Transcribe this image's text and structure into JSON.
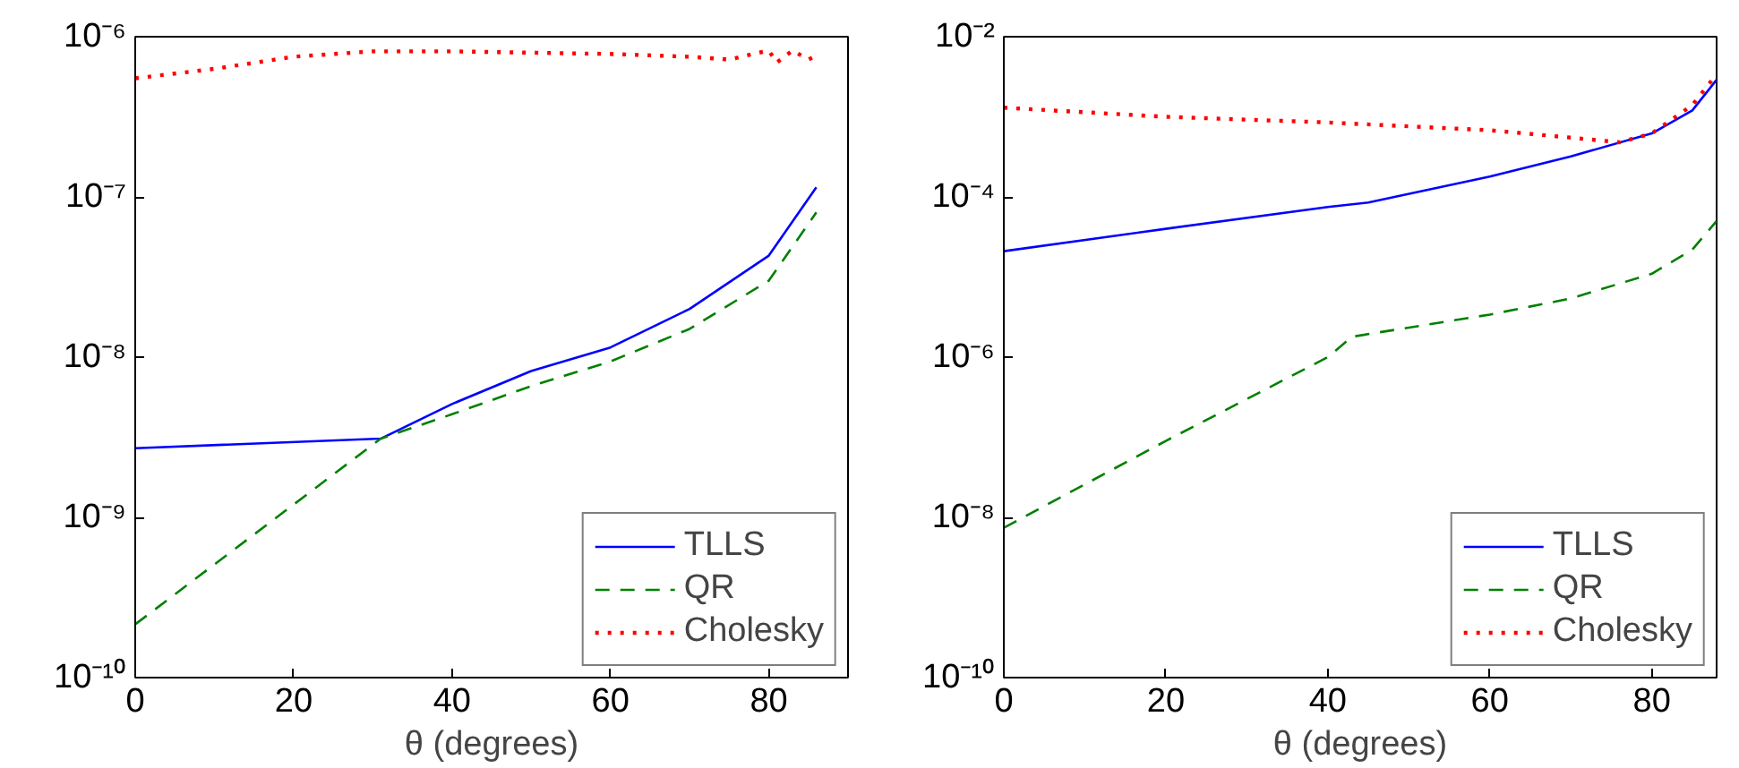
{
  "chart_data": [
    {
      "type": "line",
      "xlabel": "θ (degrees)",
      "log": "y",
      "grid": false,
      "legend": "bottom right",
      "xlim": [
        0,
        90
      ],
      "ylim": [
        1e-10,
        1e-06
      ],
      "xticks": [
        0,
        20,
        40,
        60,
        80
      ],
      "yticks": [
        {
          "value": 1e-10,
          "label": "10⁻¹⁰"
        },
        {
          "value": 1e-09,
          "label": "10⁻⁹"
        },
        {
          "value": 1e-08,
          "label": "10⁻⁸"
        },
        {
          "value": 1e-07,
          "label": "10⁻⁷"
        },
        {
          "value": 1e-06,
          "label": "10⁻⁶"
        }
      ],
      "series": [
        {
          "name": "TLLS",
          "color": "#0000ff",
          "line_style": "solid",
          "x": [
            0,
            31,
            40,
            50,
            60,
            70,
            80,
            86
          ],
          "values": [
            2.7e-09,
            3.1e-09,
            5.1e-09,
            8.2e-09,
            1.15e-08,
            2e-08,
            4.3e-08,
            1.15e-07
          ]
        },
        {
          "name": "QR",
          "color": "#008000",
          "line_style": "dashed",
          "x": [
            0,
            31,
            40,
            50,
            60,
            70,
            80,
            86
          ],
          "values": [
            2.15e-10,
            3.1e-09,
            4.4e-09,
            6.6e-09,
            9.4e-09,
            1.5e-08,
            3e-08,
            8e-08
          ]
        },
        {
          "name": "Cholesky",
          "color": "#ff0000",
          "line_style": "dotted",
          "x": [
            0,
            10,
            20,
            30,
            40,
            60,
            70,
            75,
            78,
            80,
            81,
            83,
            85,
            86
          ],
          "values": [
            5.5e-07,
            6.3e-07,
            7.5e-07,
            8.1e-07,
            8.1e-07,
            7.8e-07,
            7.5e-07,
            7.2e-07,
            7.8e-07,
            8.2e-07,
            6.9e-07,
            8.2e-07,
            7.2e-07,
            7.6e-07
          ]
        }
      ]
    },
    {
      "type": "line",
      "xlabel": "θ (degrees)",
      "log": "y",
      "grid": false,
      "legend": "bottom right",
      "xlim": [
        0,
        88
      ],
      "ylim": [
        1e-10,
        0.01
      ],
      "xticks": [
        0,
        20,
        40,
        60,
        80
      ],
      "yticks": [
        {
          "value": 1e-10,
          "label": "10⁻¹⁰"
        },
        {
          "value": 1e-08,
          "label": "10⁻⁸"
        },
        {
          "value": 1e-06,
          "label": "10⁻⁶"
        },
        {
          "value": 0.0001,
          "label": "10⁻⁴"
        },
        {
          "value": 0.01,
          "label": "10⁻²"
        }
      ],
      "series": [
        {
          "name": "TLLS",
          "color": "#0000ff",
          "line_style": "solid",
          "x": [
            0,
            20,
            40,
            45,
            60,
            70,
            80,
            85,
            88
          ],
          "values": [
            2.1e-05,
            4e-05,
            7.5e-05,
            8.5e-05,
            0.00018,
            0.00032,
            0.00062,
            0.0012,
            0.0029
          ]
        },
        {
          "name": "QR",
          "color": "#008000",
          "line_style": "dashed",
          "x": [
            0,
            20,
            40,
            43,
            60,
            70,
            80,
            85,
            88
          ],
          "values": [
            7.4e-09,
            9e-08,
            1e-06,
            1.8e-06,
            3.4e-06,
            5.4e-06,
            1.1e-05,
            2.2e-05,
            5e-05
          ]
        },
        {
          "name": "Cholesky",
          "color": "#ff0000",
          "line_style": "dotted",
          "x": [
            0,
            20,
            40,
            60,
            70,
            76,
            80,
            85,
            88
          ],
          "values": [
            0.0013,
            0.001,
            0.00085,
            0.00068,
            0.00055,
            0.00048,
            0.00062,
            0.0014,
            0.0034
          ]
        }
      ]
    }
  ]
}
